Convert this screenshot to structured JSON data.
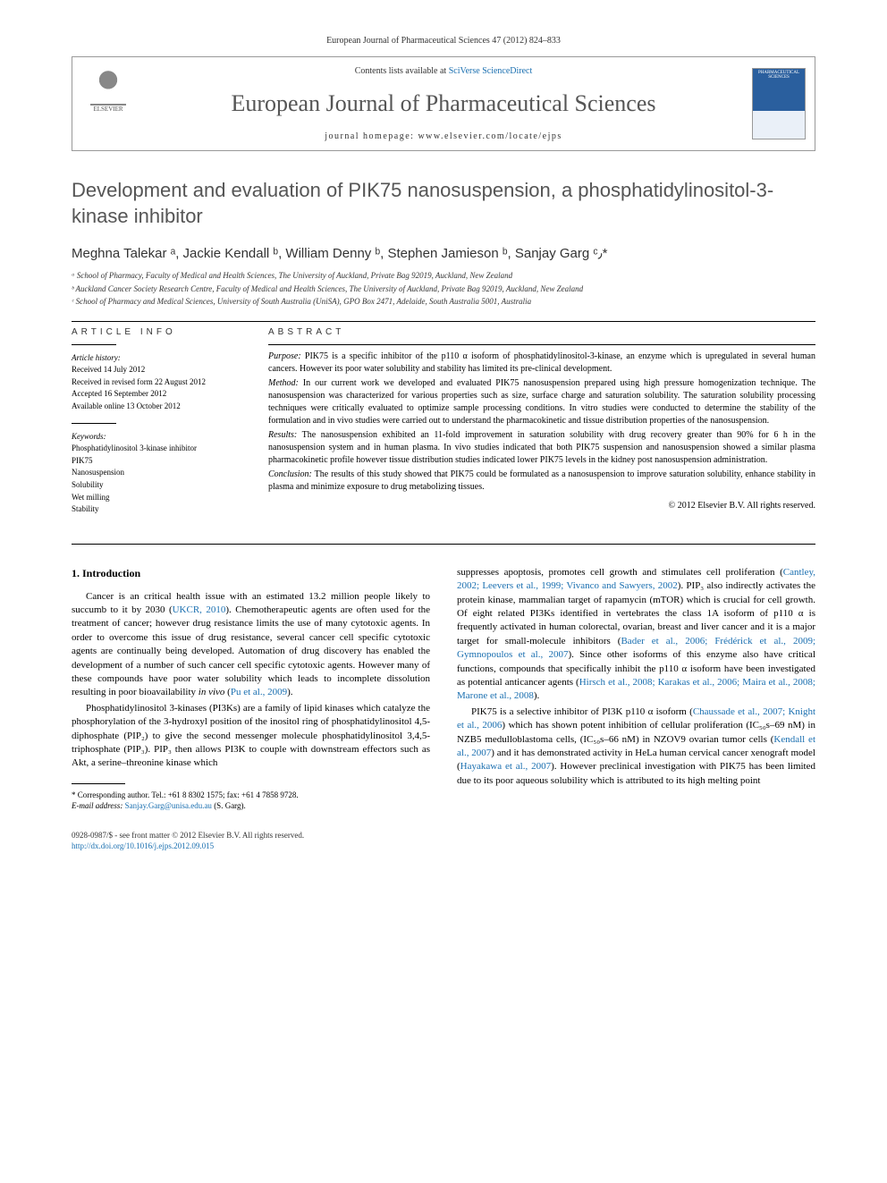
{
  "citation": "European Journal of Pharmaceutical Sciences 47 (2012) 824–833",
  "header": {
    "contents_available": "Contents lists available at ",
    "contents_link": "SciVerse ScienceDirect",
    "journal_name": "European Journal of Pharmaceutical Sciences",
    "homepage_label": "journal homepage: ",
    "homepage_url": "www.elsevier.com/locate/ejps",
    "publisher": "ELSEVIER",
    "cover_label": "PHARMACEUTICAL SCIENCES"
  },
  "title": "Development and evaluation of PIK75 nanosuspension, a phosphatidylinositol-3-kinase inhibitor",
  "authors": "Meghna Talekar ᵃ, Jackie Kendall ᵇ, William Denny ᵇ, Stephen Jamieson ᵇ, Sanjay Garg ᶜ٫*",
  "affiliations": [
    "ᵃ School of Pharmacy, Faculty of Medical and Health Sciences, The University of Auckland, Private Bag 92019, Auckland, New Zealand",
    "ᵇ Auckland Cancer Society Research Centre, Faculty of Medical and Health Sciences, The University of Auckland, Private Bag 92019, Auckland, New Zealand",
    "ᶜ School of Pharmacy and Medical Sciences, University of South Australia (UniSA), GPO Box 2471, Adelaide, South Australia 5001, Australia"
  ],
  "article_info": {
    "heading": "ARTICLE INFO",
    "history_label": "Article history:",
    "history": [
      "Received 14 July 2012",
      "Received in revised form 22 August 2012",
      "Accepted 16 September 2012",
      "Available online 13 October 2012"
    ],
    "keywords_label": "Keywords:",
    "keywords": [
      "Phosphatidylinositol 3-kinase inhibitor",
      "PIK75",
      "Nanosuspension",
      "Solubility",
      "Wet milling",
      "Stability"
    ]
  },
  "abstract": {
    "heading": "ABSTRACT",
    "purpose_label": "Purpose:",
    "purpose": "PIK75 is a specific inhibitor of the p110 α isoform of phosphatidylinositol-3-kinase, an enzyme which is upregulated in several human cancers. However its poor water solubility and stability has limited its pre-clinical development.",
    "method_label": "Method:",
    "method": "In our current work we developed and evaluated PIK75 nanosuspension prepared using high pressure homogenization technique. The nanosuspension was characterized for various properties such as size, surface charge and saturation solubility. The saturation solubility processing techniques were critically evaluated to optimize sample processing conditions. In vitro studies were conducted to determine the stability of the formulation and in vivo studies were carried out to understand the pharmacokinetic and tissue distribution properties of the nanosuspension.",
    "results_label": "Results:",
    "results": "The nanosuspension exhibited an 11-fold improvement in saturation solubility with drug recovery greater than 90% for 6 h in the nanosuspension system and in human plasma. In vivo studies indicated that both PIK75 suspension and nanosuspension showed a similar plasma pharmacokinetic profile however tissue distribution studies indicated lower PIK75 levels in the kidney post nanosuspension administration.",
    "conclusion_label": "Conclusion:",
    "conclusion": "The results of this study showed that PIK75 could be formulated as a nanosuspension to improve saturation solubility, enhance stability in plasma and minimize exposure to drug metabolizing tissues.",
    "copyright": "© 2012 Elsevier B.V. All rights reserved."
  },
  "body": {
    "section_heading": "1. Introduction",
    "left_p1_a": "Cancer is an critical health issue with an estimated 13.2 million people likely to succumb to it by 2030 (",
    "left_p1_link1": "UKCR, 2010",
    "left_p1_b": "). Chemotherapeutic agents are often used for the treatment of cancer; however drug resistance limits the use of many cytotoxic agents. In order to overcome this issue of drug resistance, several cancer cell specific cytotoxic agents are continually being developed. Automation of drug discovery has enabled the development of a number of such cancer cell specific cytotoxic agents. However many of these compounds have poor water solubility which leads to incomplete dissolution resulting in poor bioavailability ",
    "left_p1_c": "in vivo",
    "left_p1_d": " (",
    "left_p1_link2": "Pu et al., 2009",
    "left_p1_e": ").",
    "left_p2": "Phosphatidylinositol 3-kinases (PI3Ks) are a family of lipid kinases which catalyze the phosphorylation of the 3-hydroxyl position of the inositol ring of phosphatidylinositol 4,5-diphosphate (PIP₂) to give the second messenger molecule phosphatidylinositol 3,4,5-triphosphate (PIP₃). PIP₃ then allows PI3K to couple with downstream effectors such as Akt, a serine–threonine kinase which",
    "right_p1_a": "suppresses apoptosis, promotes cell growth and stimulates cell proliferation (",
    "right_p1_link1": "Cantley, 2002; Leevers et al., 1999; Vivanco and Sawyers, 2002",
    "right_p1_b": "). PIP₃ also indirectly activates the protein kinase, mammalian target of rapamycin (mTOR) which is crucial for cell growth. Of eight related PI3Ks identified in vertebrates the class 1A isoform of p110 α is frequently activated in human colorectal, ovarian, breast and liver cancer and it is a major target for small-molecule inhibitors (",
    "right_p1_link2": "Bader et al., 2006; Frédérick et al., 2009; Gymnopoulos et al., 2007",
    "right_p1_c": "). Since other isoforms of this enzyme also have critical functions, compounds that specifically inhibit the p110 α isoform have been investigated as potential anticancer agents (",
    "right_p1_link3": "Hirsch et al., 2008; Karakas et al., 2006; Maira et al., 2008; Marone et al., 2008",
    "right_p1_d": ").",
    "right_p2_a": "PIK75 is a selective inhibitor of PI3K p110 α isoform (",
    "right_p2_link1": "Chaussade et al., 2007; Knight et al., 2006",
    "right_p2_b": ") which has shown potent inhibition of cellular proliferation (IC₅₀s–69 nM) in NZB5 medulloblastoma cells, (IC₅₀s–66 nM) in NZOV9 ovarian tumor cells (",
    "right_p2_link2": "Kendall et al., 2007",
    "right_p2_c": ") and it has demonstrated activity in HeLa human cervical cancer xenograft model (",
    "right_p2_link3": "Hayakawa et al., 2007",
    "right_p2_d": "). However preclinical investigation with PIK75 has been limited due to its poor aqueous solubility which is attributed to its high melting point"
  },
  "footnote": {
    "corresponding": "* Corresponding author. Tel.: +61 8 8302 1575; fax: +61 4 7858 9728.",
    "email_label": "E-mail address:",
    "email": "Sanjay.Garg@unisa.edu.au",
    "email_suffix": " (S. Garg)."
  },
  "footer": {
    "line1": "0928-0987/$ - see front matter © 2012 Elsevier B.V. All rights reserved.",
    "doi": "http://dx.doi.org/10.1016/j.ejps.2012.09.015"
  }
}
